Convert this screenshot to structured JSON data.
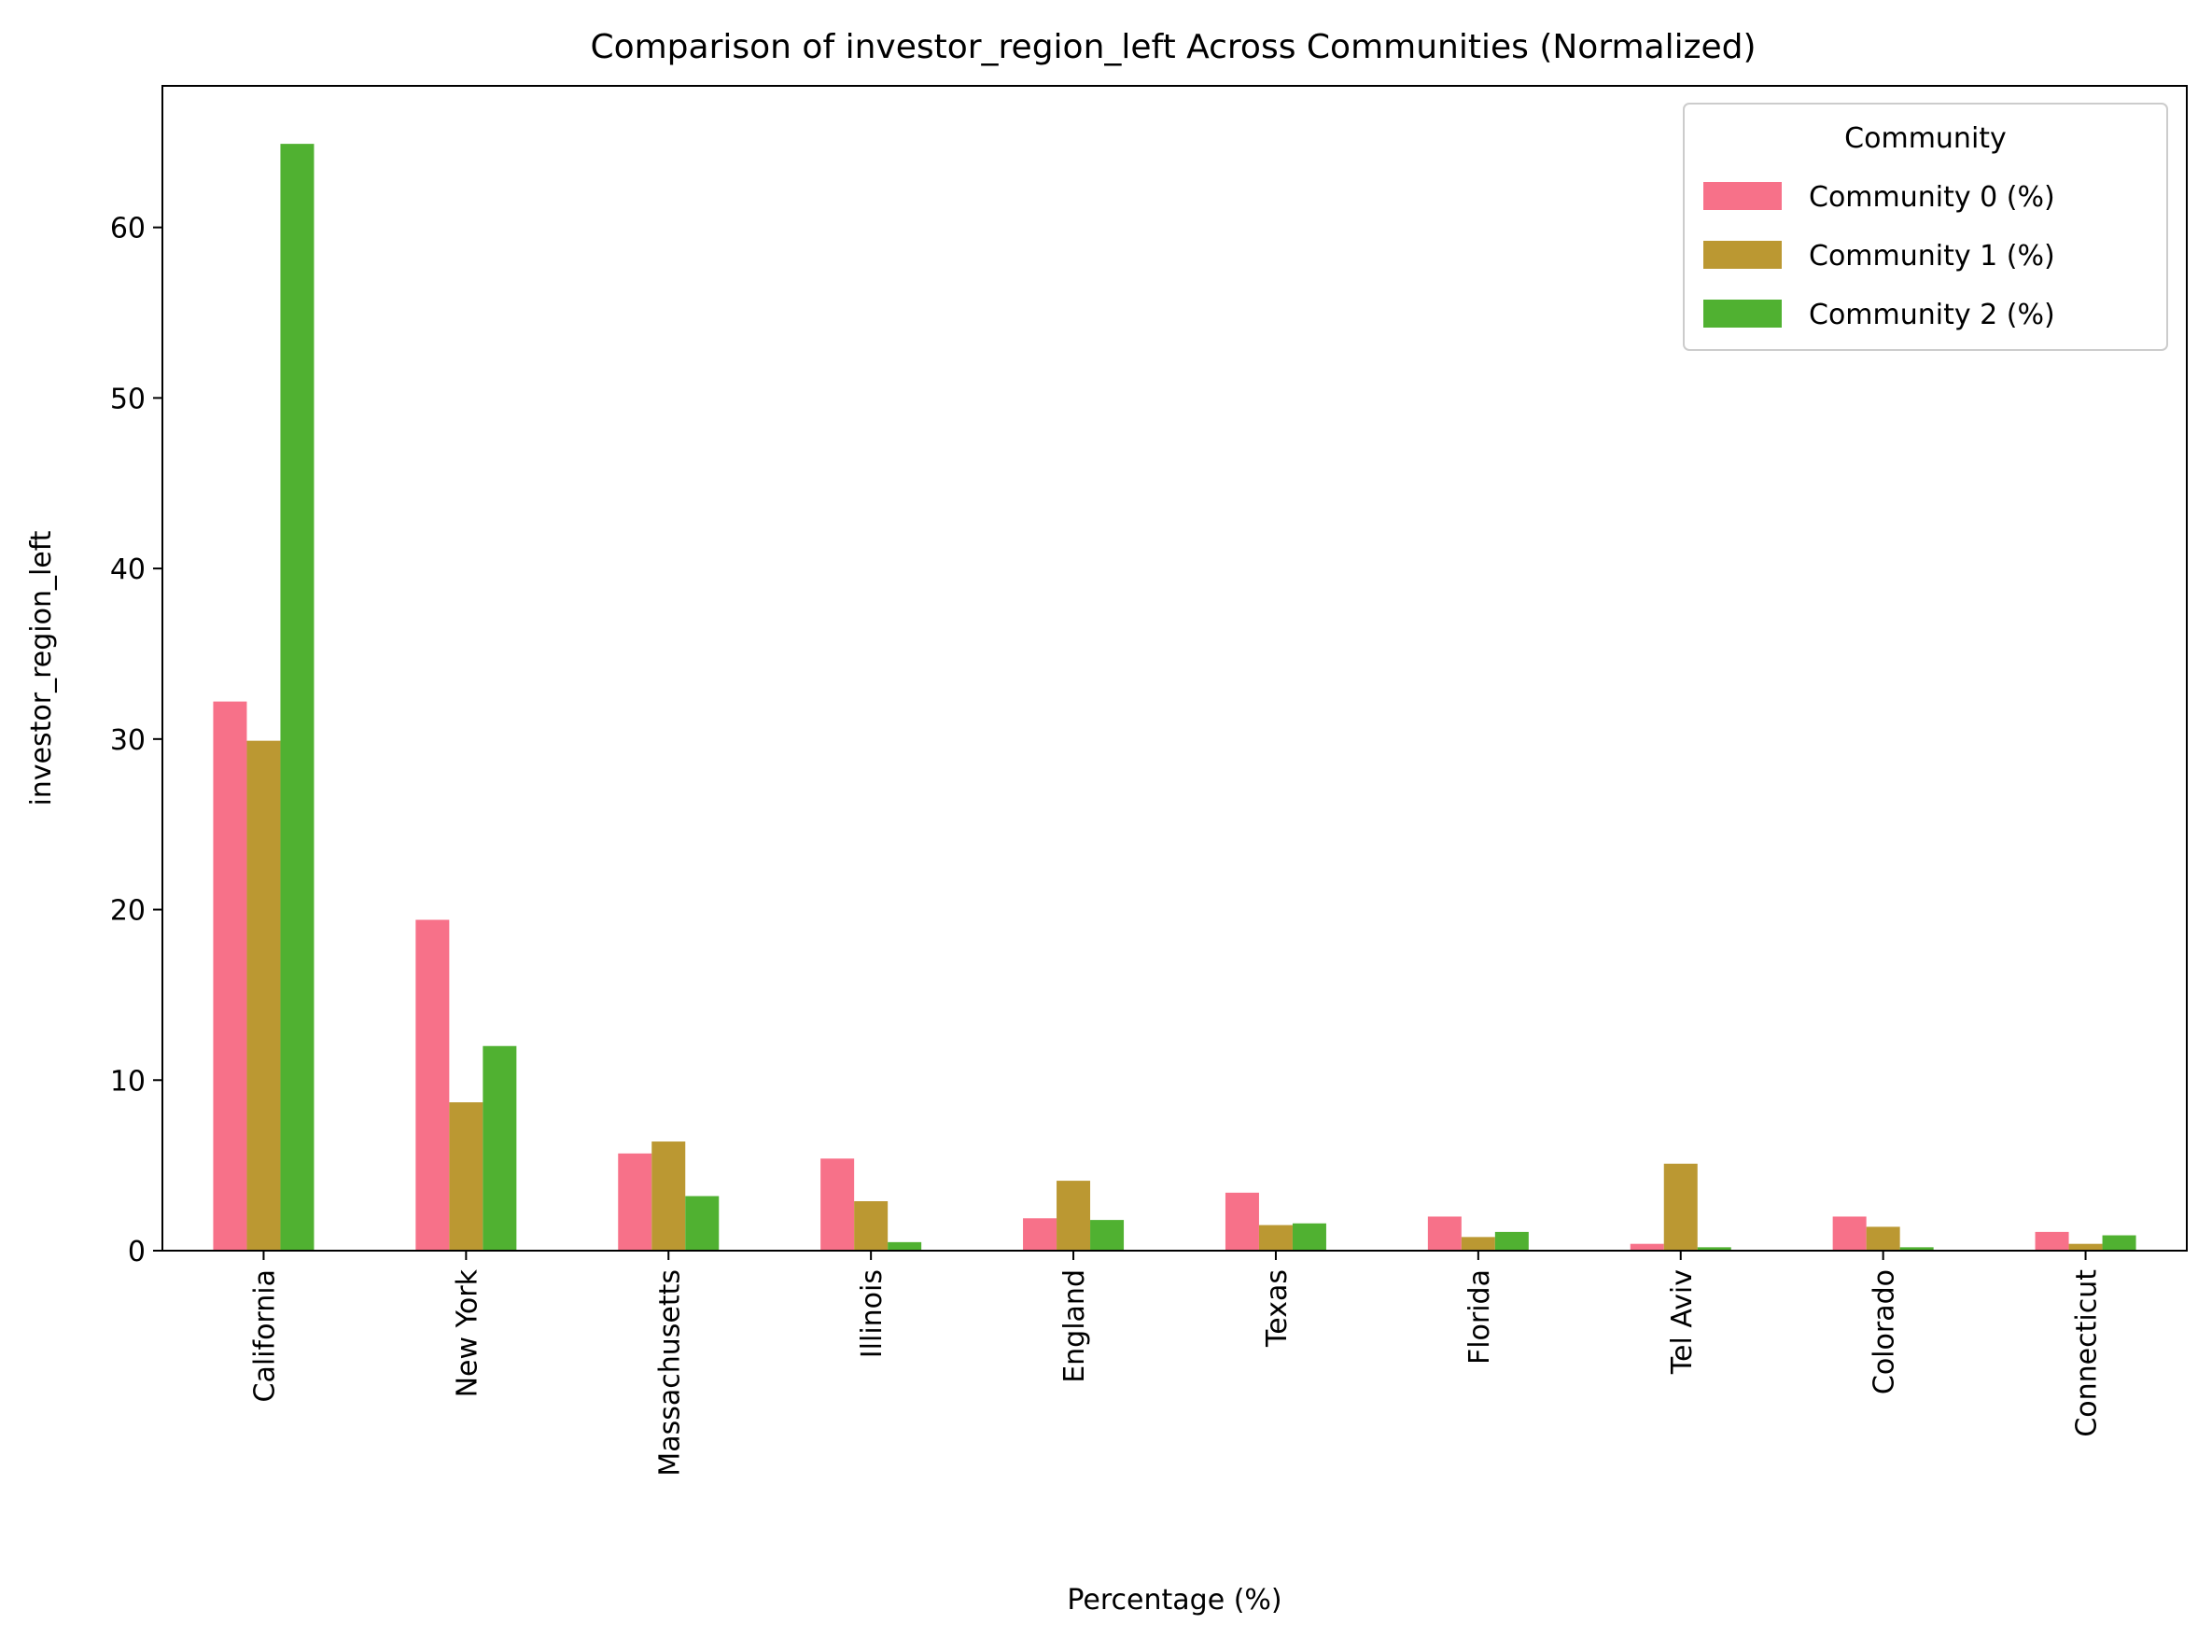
{
  "chart_data": {
    "type": "bar",
    "title": "Comparison of investor_region_left Across Communities (Normalized)",
    "xlabel": "Percentage (%)",
    "ylabel": "investor_region_left",
    "ylim": [
      0,
      68.3
    ],
    "yticks": [
      0,
      10,
      20,
      30,
      40,
      50,
      60
    ],
    "grid": false,
    "legend": {
      "title": "Community",
      "placement": "top-right"
    },
    "categories": [
      "California",
      "New York",
      "Massachusetts",
      "Illinois",
      "England",
      "Texas",
      "Florida",
      "Tel Aviv",
      "Colorado",
      "Connecticut"
    ],
    "series": [
      {
        "name": "Community 0 (%)",
        "color": "#f77189",
        "values": [
          32.2,
          19.4,
          5.7,
          5.4,
          1.9,
          3.4,
          2.0,
          0.4,
          2.0,
          1.1
        ]
      },
      {
        "name": "Community 1 (%)",
        "color": "#bb9832",
        "values": [
          29.9,
          8.7,
          6.4,
          2.9,
          4.1,
          1.5,
          0.8,
          5.1,
          1.4,
          0.4
        ]
      },
      {
        "name": "Community 2 (%)",
        "color": "#50b131",
        "values": [
          64.9,
          12.0,
          3.2,
          0.5,
          1.8,
          1.6,
          1.1,
          0.2,
          0.2,
          0.9
        ]
      }
    ]
  }
}
